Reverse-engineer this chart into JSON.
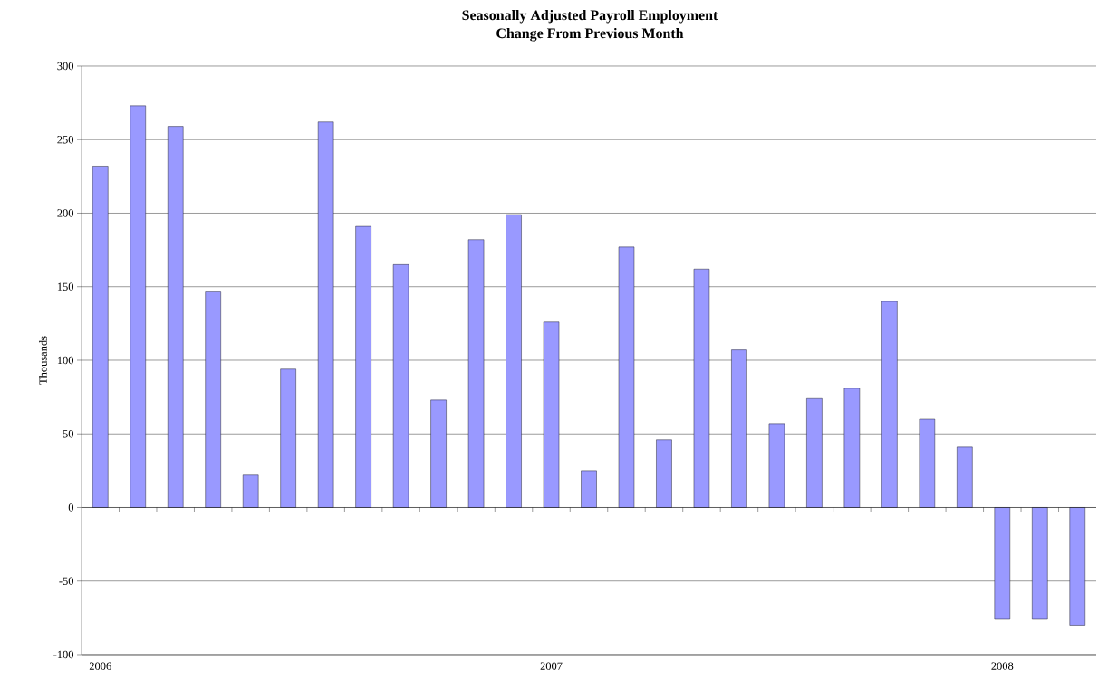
{
  "chart_data": {
    "type": "bar",
    "title": "Seasonally Adjusted Payroll Employment",
    "subtitle": "Change From Previous Month",
    "ylabel": "Thousands",
    "categories": [
      "2006",
      null,
      null,
      null,
      null,
      null,
      null,
      null,
      null,
      null,
      null,
      null,
      "2007",
      null,
      null,
      null,
      null,
      null,
      null,
      null,
      null,
      null,
      null,
      null,
      "2008",
      null,
      null
    ],
    "values": [
      232,
      273,
      259,
      147,
      22,
      94,
      262,
      191,
      165,
      73,
      182,
      199,
      126,
      25,
      177,
      46,
      162,
      107,
      57,
      74,
      81,
      140,
      60,
      41,
      -76,
      -76,
      -80
    ],
    "color": "#9999ff",
    "ylim": [
      -100,
      300
    ],
    "yticks": [
      -100,
      -50,
      0,
      50,
      100,
      150,
      200,
      250,
      300
    ],
    "grid": "y"
  }
}
